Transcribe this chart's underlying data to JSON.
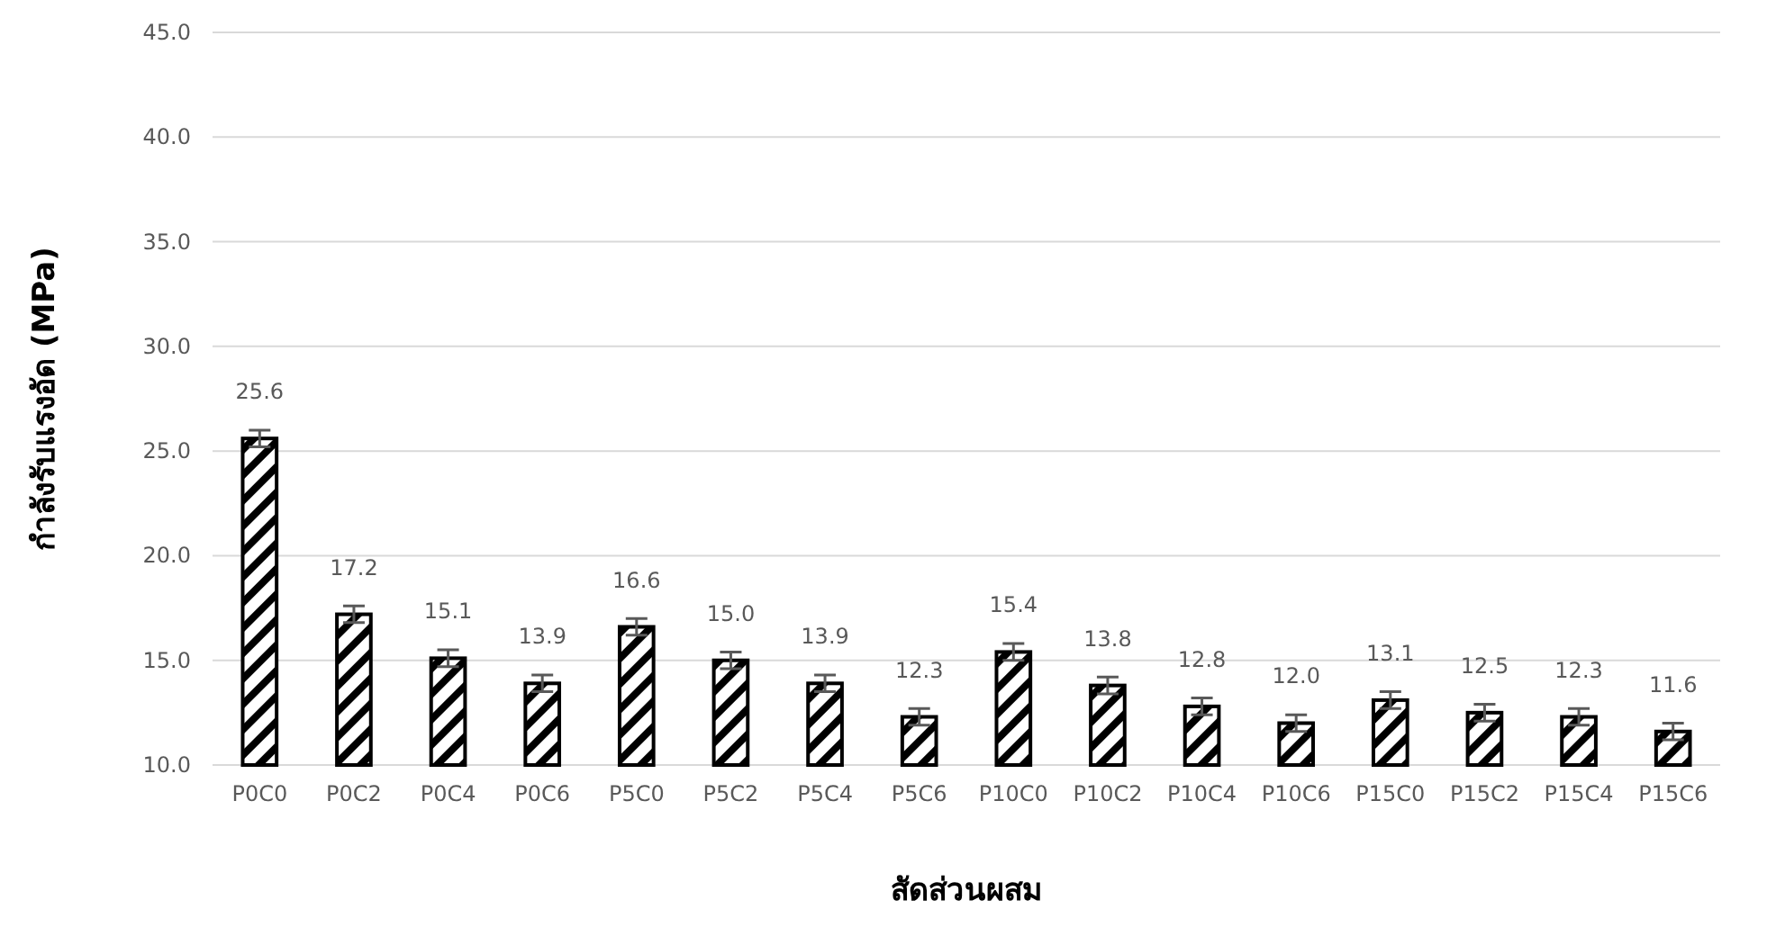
{
  "chart_data": {
    "type": "bar",
    "xlabel": "สัดส่วนผสม",
    "ylabel": "กำลังรับแรงอัด (MPa)",
    "categories": [
      "P0C0",
      "P0C2",
      "P0C4",
      "P0C6",
      "P5C0",
      "P5C2",
      "P5C4",
      "P5C6",
      "P10C0",
      "P10C2",
      "P10C4",
      "P10C6",
      "P15C0",
      "P15C2",
      "P15C4",
      "P15C6"
    ],
    "values": [
      25.6,
      17.2,
      15.1,
      13.9,
      16.6,
      15.0,
      13.9,
      12.3,
      15.4,
      13.8,
      12.8,
      12.0,
      13.1,
      12.5,
      12.3,
      11.6
    ],
    "errors": [
      0.4,
      0.4,
      0.4,
      0.4,
      0.4,
      0.4,
      0.4,
      0.4,
      0.4,
      0.4,
      0.4,
      0.4,
      0.4,
      0.4,
      0.4,
      0.4
    ],
    "color": "#000000",
    "ylim": [
      10,
      45
    ],
    "yticks": [
      {
        "value": 10,
        "label": "10.0"
      },
      {
        "value": 15,
        "label": "15.0"
      },
      {
        "value": 20,
        "label": "20.0"
      },
      {
        "value": 25,
        "label": "25.0"
      },
      {
        "value": 30,
        "label": "30.0"
      },
      {
        "value": 35,
        "label": "35.0"
      },
      {
        "value": 40,
        "label": "40.0"
      },
      {
        "value": 45,
        "label": "45.0"
      }
    ],
    "value_labels": [
      "25.6",
      "17.2",
      "15.1",
      "13.9",
      "16.6",
      "15.0",
      "13.9",
      "12.3",
      "15.4",
      "13.8",
      "12.8",
      "12.0",
      "13.1",
      "12.5",
      "12.3",
      "11.6"
    ],
    "grid": "y"
  }
}
